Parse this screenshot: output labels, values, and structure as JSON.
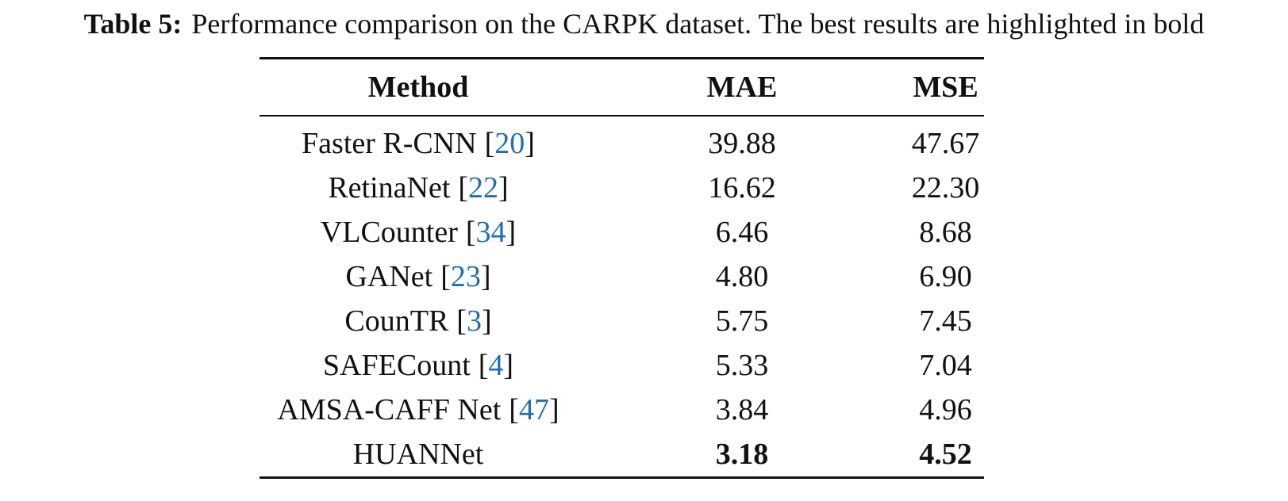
{
  "caption": {
    "label": "Table 5:",
    "text": "Performance comparison on the CARPK dataset. The best results are highlighted in bold"
  },
  "table": {
    "columns": [
      "Method",
      "MAE",
      "MSE"
    ],
    "rows": [
      {
        "method": "Faster R-CNN",
        "ref": "20",
        "mae": "39.88",
        "mse": "47.67"
      },
      {
        "method": "RetinaNet",
        "ref": "22",
        "mae": "16.62",
        "mse": "22.30"
      },
      {
        "method": "VLCounter",
        "ref": "34",
        "mae": "6.46",
        "mse": "8.68"
      },
      {
        "method": "GANet",
        "ref": "23",
        "mae": "4.80",
        "mse": "6.90"
      },
      {
        "method": "CounTR",
        "ref": "3",
        "mae": "5.75",
        "mse": "7.45"
      },
      {
        "method": "SAFECount",
        "ref": "4",
        "mae": "5.33",
        "mse": "7.04"
      },
      {
        "method": "AMSA-CAFF Net",
        "ref": "47",
        "mae": "3.84",
        "mse": "4.96"
      },
      {
        "method": "HUANNet",
        "mae": "3.18",
        "mse": "4.52",
        "highlight": true
      }
    ]
  }
}
